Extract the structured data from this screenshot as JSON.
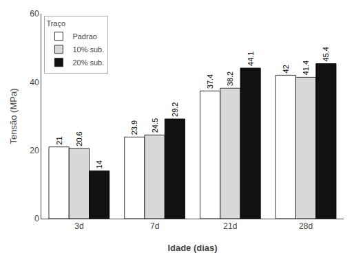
{
  "chart_data": {
    "type": "bar",
    "categories": [
      "3d",
      "7d",
      "21d",
      "28d"
    ],
    "series": [
      {
        "name": "Padrao",
        "color": "#ffffff",
        "values": [
          21,
          23.9,
          37.4,
          42
        ]
      },
      {
        "name": "10% sub.",
        "color": "#d8d8d8",
        "values": [
          20.6,
          24.5,
          38.2,
          41.4
        ]
      },
      {
        "name": "20% sub.",
        "color": "#111111",
        "values": [
          14,
          29.2,
          44.1,
          45.4
        ]
      }
    ],
    "xlabel": "Idade (dias)",
    "ylabel": "Tensão (MPa)",
    "legend_title": "Traço",
    "legend": "upper left",
    "ylim": [
      0,
      60
    ],
    "yticks": [
      0,
      20,
      40,
      60
    ],
    "data_labels": true,
    "grid": false
  }
}
